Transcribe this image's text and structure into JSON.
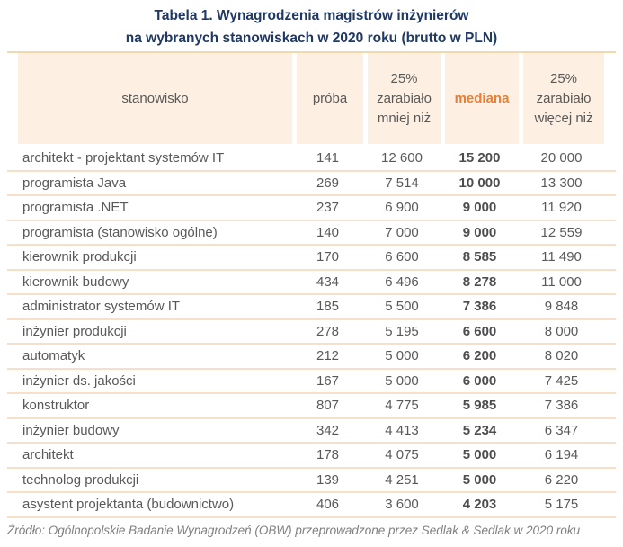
{
  "chart_data": {
    "type": "table",
    "title_lines": [
      "Tabela 1. Wynagrodzenia magistrów inżynierów",
      "na wybranych stanowiskach w 2020 roku (brutto w PLN)"
    ],
    "columns": [
      "stanowisko",
      "próba",
      "25% zarabiało mniej niż",
      "mediana",
      "25% zarabiało więcej niż"
    ],
    "rows": [
      [
        "architekt - projektant systemów IT",
        "141",
        "12 600",
        "15 200",
        "20 000"
      ],
      [
        "programista Java",
        "269",
        "7 514",
        "10 000",
        "13 300"
      ],
      [
        "programista .NET",
        "237",
        "6 900",
        "9 000",
        "11 920"
      ],
      [
        "programista (stanowisko ogólne)",
        "140",
        "7 000",
        "9 000",
        "12 559"
      ],
      [
        "kierownik produkcji",
        "170",
        "6 600",
        "8 585",
        "11 490"
      ],
      [
        "kierownik budowy",
        "434",
        "6 496",
        "8 278",
        "11 000"
      ],
      [
        "administrator systemów IT",
        "185",
        "5 500",
        "7 386",
        "9 848"
      ],
      [
        "inżynier produkcji",
        "278",
        "5 195",
        "6 600",
        "8 000"
      ],
      [
        "automatyk",
        "212",
        "5 000",
        "6 200",
        "8 020"
      ],
      [
        "inżynier ds. jakości",
        "167",
        "5 000",
        "6 000",
        "7 425"
      ],
      [
        "konstruktor",
        "807",
        "4 775",
        "5 985",
        "7 386"
      ],
      [
        "inżynier budowy",
        "342",
        "4 413",
        "5 234",
        "6 347"
      ],
      [
        "architekt",
        "178",
        "4 075",
        "5 000",
        "6 194"
      ],
      [
        "technolog produkcji",
        "139",
        "4 251",
        "5 000",
        "6 220"
      ],
      [
        "asystent projektanta (budownictwo)",
        "406",
        "3 600",
        "4 203",
        "5 175"
      ]
    ],
    "source": "Źródło: Ogólnopolskie Badanie Wynagrodzeń (OBW) przeprowadzone przez Sedlak & Sedlak w 2020 roku"
  },
  "colors": {
    "title_navy": "#1f3864",
    "mediana_orange": "#ed7d31",
    "header_bg": "#fdf0e3",
    "row_separator": "#f8e0c8",
    "top_rule": "#f0d9ae",
    "body_text": "#595959",
    "source_text": "#7f7f7f"
  }
}
